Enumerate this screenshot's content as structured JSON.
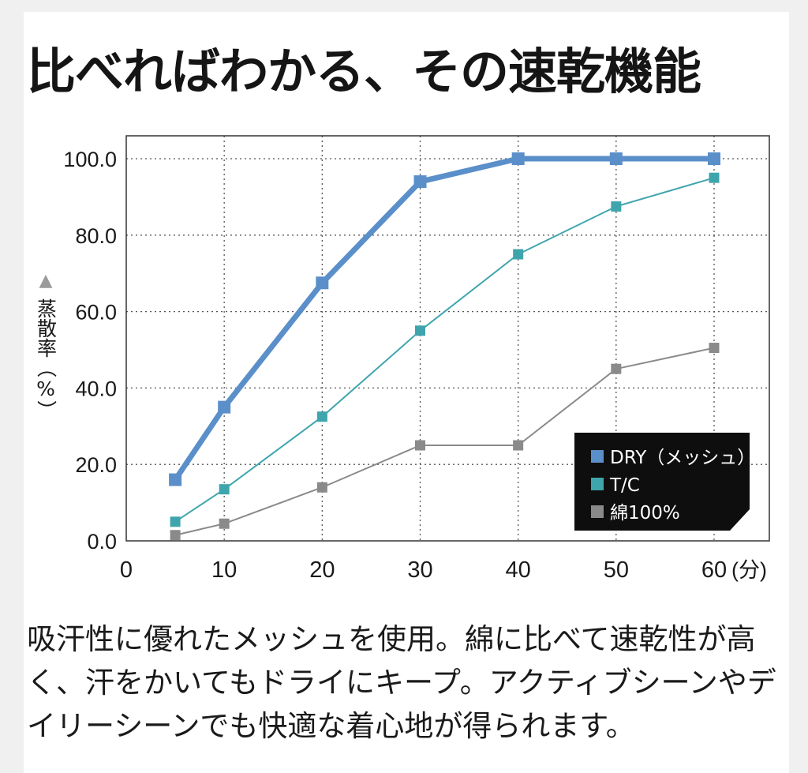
{
  "title": "比べればわかる、その速乾機能",
  "description": "吸汗性に優れたメッシュを使用。綿に比べて速乾性が高く、汗をかいてもドライにキープ。アクティブシーンやデイリーシーンでも快適な着心地が得られます。",
  "chart_data": {
    "type": "line",
    "title": "",
    "ylabel": "蒸散率（%）",
    "ylabel_marker": "▲",
    "xlabel": "",
    "x_unit_suffix": "(分)",
    "xlim": [
      0,
      60
    ],
    "ylim": [
      0,
      100
    ],
    "x_ticks": [
      0,
      10,
      20,
      30,
      40,
      50,
      60
    ],
    "x_tick_labels": [
      "0",
      "10",
      "20",
      "30",
      "40",
      "50",
      "60"
    ],
    "y_ticks": [
      0,
      20,
      40,
      60,
      80,
      100
    ],
    "y_tick_labels": [
      "0.0",
      "20.0",
      "40.0",
      "60.0",
      "80.0",
      "100.0"
    ],
    "grid": true,
    "legend_position": "bottom-right",
    "x": [
      5,
      10,
      20,
      30,
      40,
      50,
      60
    ],
    "series": [
      {
        "name": "DRY（メッシュ）",
        "color": "#5b8fc9",
        "line_width": 7,
        "values": [
          16,
          35,
          67.5,
          94,
          100,
          100,
          100
        ]
      },
      {
        "name": "T/C",
        "color": "#3fa5ad",
        "line_width": 2,
        "values": [
          5,
          13.5,
          32.5,
          55,
          75,
          87.5,
          95
        ]
      },
      {
        "name": "綿100%",
        "color": "#8a8a8a",
        "line_width": 2,
        "values": [
          1.5,
          4.5,
          14,
          25,
          25,
          45,
          50.5
        ]
      }
    ]
  }
}
